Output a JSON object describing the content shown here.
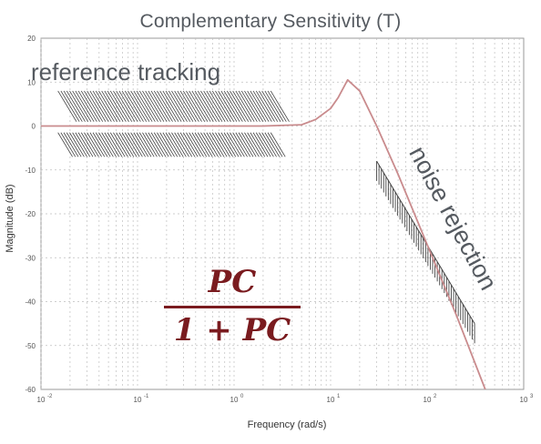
{
  "chart_data": {
    "type": "line",
    "title": "Complementary Sensitivity  (T)",
    "xlabel": "Frequency (rad/s)",
    "ylabel": "Magnitude (dB)",
    "xscale": "log",
    "xlim": [
      0.01,
      1000
    ],
    "ylim": [
      -60,
      20
    ],
    "grid": true,
    "x_ticks": [
      "10",
      "10",
      "10",
      "10",
      "10",
      "10"
    ],
    "x_tick_exponents": [
      "-2",
      "-1",
      "0",
      "1",
      "2",
      "3"
    ],
    "y_ticks": [
      "20",
      "10",
      "0",
      "-10",
      "-20",
      "-30",
      "-40",
      "-50",
      "-60"
    ],
    "series": [
      {
        "color": "#c98b8d",
        "x": [
          0.01,
          0.1,
          1,
          2,
          5,
          7,
          10,
          12,
          15,
          20,
          30,
          50,
          100,
          200,
          400
        ],
        "y": [
          0,
          0,
          0,
          0,
          0.3,
          1.5,
          4,
          6.5,
          10.5,
          8,
          0,
          -11,
          -27,
          -43,
          -60
        ]
      }
    ],
    "annotations": {
      "reference_tracking": "reference tracking",
      "noise_rejection": "noise rejection",
      "formula_numerator": "PC",
      "formula_denominator": "1 + PC"
    },
    "colors": {
      "curve": "#c98b8d",
      "formula": "#7a1b1f",
      "hatch": "#444444",
      "grid": "#bfbfbf"
    }
  }
}
